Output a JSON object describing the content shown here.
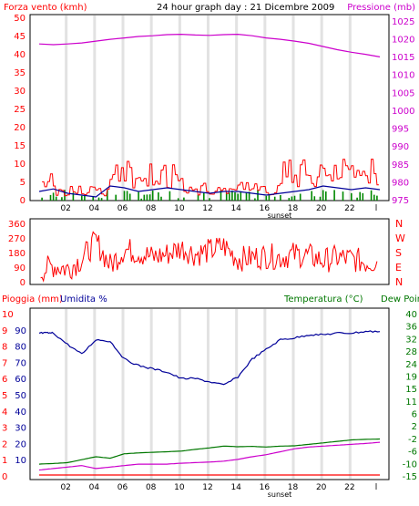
{
  "chart_data": [
    {
      "type": "line",
      "title": "24 hour graph day : 21 Dicembre 2009",
      "left_axis_label": "Forza vento (kmh)",
      "right_axis_label": "Pressione (mb)",
      "left_ticks": [
        "0",
        "5",
        "10",
        "15",
        "20",
        "25",
        "30",
        "35",
        "40",
        "45",
        "50"
      ],
      "right_ticks": [
        "975",
        "980",
        "985",
        "990",
        "995",
        "1000",
        "1005",
        "1010",
        "1015",
        "1020",
        "1025"
      ],
      "ylim_left": [
        0,
        50
      ],
      "ylim_right": [
        975,
        1026
      ],
      "x_ticks": [
        "02",
        "04",
        "06",
        "08",
        "10",
        "12",
        "14",
        "16",
        "18",
        "20",
        "22"
      ],
      "x_end_label": "l",
      "sunset_label": "sunset",
      "grid": "vertical bands",
      "colors": {
        "pressure": "#cc00cc",
        "gust": "#ff0000",
        "wind_avg": "#000099",
        "wind_fill": "#008800",
        "left_axis": "#ff0000",
        "right_axis": "#cc00cc"
      },
      "series": [
        {
          "name": "Pressione (mb)",
          "axis": "right",
          "hours": [
            0,
            1,
            2,
            3,
            4,
            5,
            6,
            7,
            8,
            9,
            10,
            11,
            12,
            13,
            14,
            15,
            16,
            17,
            18,
            19,
            20,
            21,
            22,
            23,
            24
          ],
          "values": [
            1018.8,
            1018.6,
            1018.8,
            1019.1,
            1019.6,
            1020.1,
            1020.5,
            1020.9,
            1021.1,
            1021.4,
            1021.5,
            1021.3,
            1021.2,
            1021.4,
            1021.5,
            1021.1,
            1020.5,
            1020.1,
            1019.6,
            1019.0,
            1018.1,
            1017.2,
            1016.5,
            1015.9,
            1015.2
          ]
        },
        {
          "name": "Forza vento (kmh)",
          "axis": "left",
          "hours": [
            0,
            1,
            2,
            3,
            4,
            5,
            6,
            7,
            8,
            9,
            10,
            11,
            12,
            13,
            14,
            15,
            16,
            17,
            18,
            19,
            20,
            21,
            22,
            23,
            24
          ],
          "values": [
            2.5,
            3.2,
            2.0,
            1.5,
            1.0,
            4.0,
            3.5,
            2.5,
            3.0,
            3.5,
            3.0,
            2.5,
            2.0,
            2.5,
            2.5,
            2.0,
            1.5,
            2.0,
            2.5,
            3.0,
            4.0,
            3.5,
            3.0,
            3.5,
            3.0
          ]
        }
      ]
    },
    {
      "type": "line",
      "left_ticks": [
        "360",
        "270",
        "180",
        "90",
        "0"
      ],
      "right_ticks": [
        "N",
        "W",
        "S",
        "E",
        "N"
      ],
      "ylim": [
        0,
        360
      ],
      "colors": {
        "direction": "#ff0000"
      },
      "series": [
        {
          "name": "direction",
          "hours": [
            0,
            1,
            2,
            3,
            4,
            5,
            6,
            7,
            8,
            9,
            10,
            11,
            12,
            13,
            14,
            15,
            16,
            17,
            18,
            19,
            20,
            21,
            22,
            23,
            24
          ],
          "values": [
            60,
            100,
            80,
            140,
            250,
            100,
            200,
            180,
            150,
            170,
            210,
            170,
            190,
            220,
            140,
            150,
            160,
            150,
            170,
            160,
            130,
            150,
            140,
            120,
            130
          ]
        }
      ]
    },
    {
      "type": "line",
      "left_labels": [
        "Pioggia (mm)",
        "Umidita %"
      ],
      "right_labels": [
        "Temperatura (°C)",
        "Dew Point"
      ],
      "left_ticks_outer": [
        "0",
        "1",
        "2",
        "3",
        "4",
        "5",
        "6",
        "7",
        "8",
        "9",
        "10"
      ],
      "left_ticks_inner": [
        "10",
        "20",
        "30",
        "40",
        "50",
        "60",
        "70",
        "80",
        "90"
      ],
      "right_ticks": [
        "-15",
        "-10",
        "-6",
        "-2",
        "2",
        "6",
        "11",
        "15",
        "19",
        "24",
        "28",
        "32",
        "36",
        "40"
      ],
      "ylim_humidity": [
        0,
        100
      ],
      "ylim_temp": [
        -15,
        40
      ],
      "x_ticks": [
        "02",
        "04",
        "06",
        "08",
        "10",
        "12",
        "14",
        "16",
        "18",
        "20",
        "22"
      ],
      "x_end_label": "l",
      "sunset_label": "sunset",
      "grid": "vertical bands",
      "colors": {
        "humidity": "#000099",
        "temperature": "#007700",
        "dew_point": "#cc00cc",
        "rain": "#ff0000"
      },
      "series": [
        {
          "name": "Umidita %",
          "axis": "humidity",
          "hours": [
            0,
            0.5,
            1,
            2,
            3,
            4,
            5,
            6,
            7,
            8,
            9,
            10,
            11,
            12,
            13,
            14,
            15,
            16,
            17,
            18,
            19,
            20,
            21,
            22,
            23,
            24
          ],
          "values": [
            88,
            88,
            88,
            81,
            75,
            84,
            83,
            72,
            68,
            66,
            64,
            60,
            60,
            58,
            56,
            61,
            72,
            78,
            84,
            85,
            87,
            87,
            88,
            88,
            89,
            89
          ]
        },
        {
          "name": "Temperatura (°C)",
          "axis": "temp",
          "hours": [
            0,
            1,
            2,
            3,
            4,
            5,
            6,
            7,
            8,
            9,
            10,
            11,
            12,
            13,
            14,
            15,
            16,
            17,
            18,
            19,
            20,
            21,
            22,
            23,
            24
          ],
          "values": [
            -11.0,
            -10.8,
            -10.5,
            -9.5,
            -8.5,
            -9.0,
            -7.5,
            -7.2,
            -7.0,
            -6.8,
            -6.6,
            -6.0,
            -5.5,
            -4.9,
            -5.1,
            -5.0,
            -5.2,
            -4.9,
            -4.8,
            -4.3,
            -3.8,
            -3.3,
            -2.8,
            -2.6,
            -2.5
          ]
        },
        {
          "name": "Dew Point",
          "axis": "temp",
          "hours": [
            0,
            1,
            2,
            3,
            4,
            5,
            6,
            7,
            8,
            9,
            10,
            11,
            12,
            13,
            14,
            15,
            16,
            17,
            18,
            19,
            20,
            21,
            22,
            23,
            24
          ],
          "values": [
            -13.0,
            -12.5,
            -12.0,
            -11.5,
            -12.5,
            -12.0,
            -11.5,
            -11.0,
            -11.0,
            -11.0,
            -10.7,
            -10.5,
            -10.3,
            -10.0,
            -9.4,
            -8.5,
            -7.8,
            -6.8,
            -5.8,
            -5.2,
            -4.9,
            -4.6,
            -4.3,
            -4.0,
            -3.6
          ]
        },
        {
          "name": "Pioggia (mm)",
          "axis": "rain",
          "hours": [
            0,
            24
          ],
          "values": [
            0,
            0
          ]
        }
      ]
    }
  ]
}
